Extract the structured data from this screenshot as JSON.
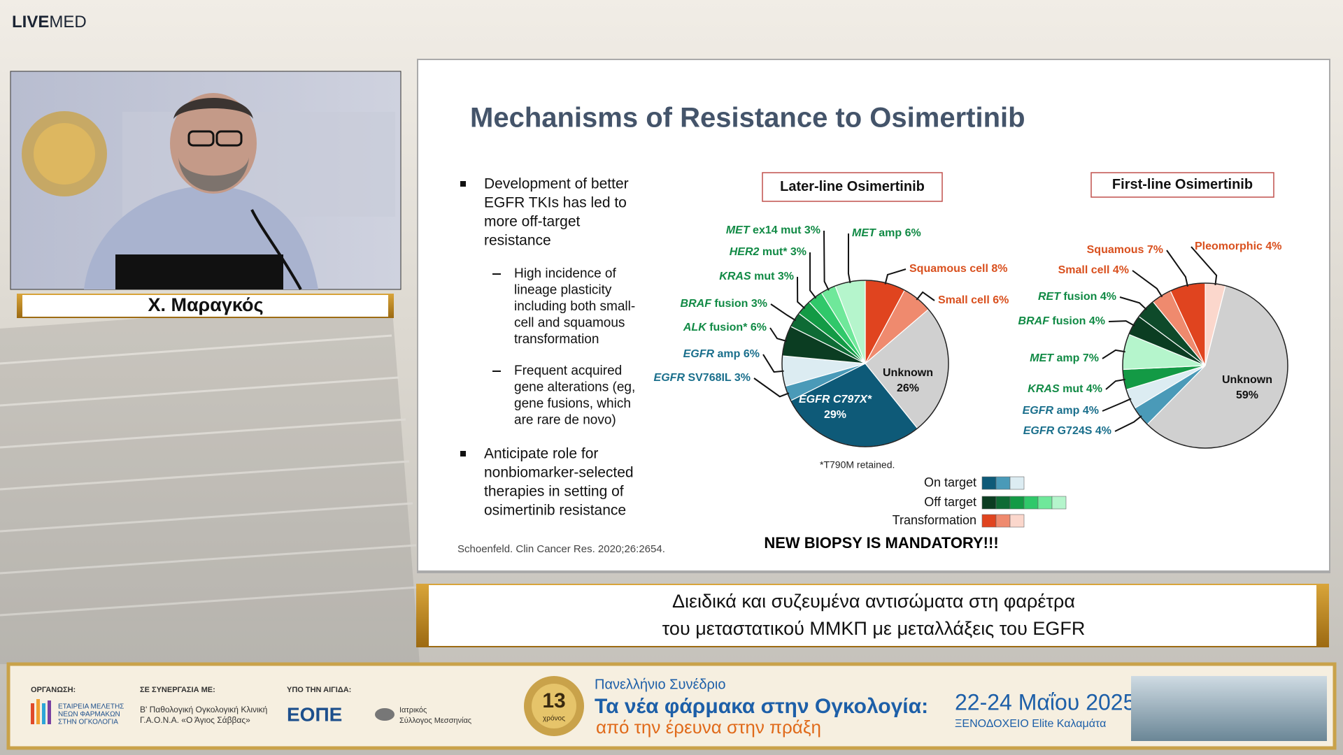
{
  "header": {
    "logo_bold": "LIVE",
    "logo_light": "MED"
  },
  "speaker": {
    "name": "Χ. Μαραγκός"
  },
  "slide": {
    "title": "Mechanisms of Resistance to Osimertinib",
    "bullets": [
      [
        "Development of better",
        "EGFR TKIs has led to",
        "more off-target",
        "resistance"
      ],
      [
        "Anticipate role for",
        "nonbiomarker-selected",
        "therapies in setting of",
        "osimertinib resistance"
      ]
    ],
    "subbullets": [
      [
        "High incidence of",
        "lineage plasticity",
        "including both small-",
        "cell and squamous",
        "transformation"
      ],
      [
        "Frequent acquired",
        "gene alterations (eg,",
        "gene fusions, which",
        "are rare de novo)"
      ]
    ],
    "citation": "Schoenfeld. Clin Cancer Res. 2020;26:2654.",
    "footnote": "*T790M retained.",
    "legend": [
      {
        "name": "On target",
        "colors": [
          "#0e5a78",
          "#4a9ab8",
          "#dcecf2"
        ]
      },
      {
        "name": "Off target",
        "colors": [
          "#0b3d22",
          "#0e6b35",
          "#139a45",
          "#30c86a",
          "#6fe89a",
          "#b5f5cc"
        ]
      },
      {
        "name": "Transformation",
        "colors": [
          "#e0441f",
          "#ef8a6e",
          "#fbd7cc"
        ]
      }
    ],
    "call_to_action": "NEW BIOPSY IS MANDATORY!!!"
  },
  "caption": {
    "lines": [
      "Διειδικά και συζευμένα αντισώματα στη φαρέτρα",
      "του μεταστατικού ΜΜΚΠ με μεταλλάξεις του EGFR"
    ]
  },
  "footer": {
    "organizer_label": "ΟΡΓΑΝΩΣΗ:",
    "organizer": [
      "ΕΤΑΙΡΕΙΑ ΜΕΛΕΤΗΣ",
      "ΝΕΩΝ ΦΑΡΜΑΚΩΝ",
      "ΣΤΗΝ ΟΓΚΟΛΟΓΙΑ"
    ],
    "partner_label": "ΣΕ ΣΥΝΕΡΓΑΣΙΑ ΜΕ:",
    "partner": [
      "Β' Παθολογική Ογκολογική Κλινική",
      "Γ.Α.Ο.Ν.Α. «Ο Άγιος Σάββας»"
    ],
    "auspices_label": "ΥΠΟ ΤΗΝ ΑΙΓΙΔΑ:",
    "auspices_logo": "ΕΟΠΕ",
    "auspices_other": [
      "Ιατρικός",
      "Σύλλογος Μεσσηνίας"
    ],
    "badge_number": "13",
    "badge_text": "χρόνος",
    "event": [
      "Πανελλήνιο Συνέδριο",
      "Τα νέα φάρμακα στην Ογκολογία:",
      "από την έρευνα στην πράξη"
    ],
    "dates": "22-24 Μαΐου 2025",
    "venue": "ΞΕΝΟΔΟΧΕΙΟ Elite Καλαμάτα"
  },
  "chart_data": [
    {
      "type": "pie",
      "title": "Later-line Osimertinib",
      "categories": [
        "Squamous cell",
        "Small cell",
        "Unknown",
        "EGFR C797X*",
        "EGFR SV768IL",
        "EGFR amp",
        "ALK fusion*",
        "BRAF fusion",
        "KRAS mut",
        "HER2 mut*",
        "MET ex14 mut",
        "MET amp"
      ],
      "values": [
        8,
        6,
        26,
        29,
        3,
        6,
        6,
        3,
        3,
        3,
        3,
        6
      ],
      "value_labels": [
        "8%",
        "6%",
        "26%",
        "29%",
        "3%",
        "6%",
        "6%",
        "3%",
        "3%",
        "3%",
        "3%",
        "6%"
      ],
      "colors": [
        "#e0441f",
        "#ef8a6e",
        "#d0d0d0",
        "#0e5a78",
        "#4a9ab8",
        "#dcecf2",
        "#0b3d22",
        "#0e6b35",
        "#139a45",
        "#30c86a",
        "#6fe89a",
        "#b5f5cc"
      ],
      "label_colors": [
        "#d9501e",
        "#d9501e",
        "#111111",
        "#ffffff",
        "#1a6f8c",
        "#1a6f8c",
        "#118a45",
        "#118a45",
        "#118a45",
        "#118a45",
        "#118a45",
        "#118a45"
      ]
    },
    {
      "type": "pie",
      "title": "First-line Osimertinib",
      "categories": [
        "Pleomorphic",
        "Unknown",
        "EGFR G724S",
        "EGFR amp",
        "KRAS mut",
        "MET amp",
        "BRAF fusion",
        "RET fusion",
        "Small cell",
        "Squamous"
      ],
      "values": [
        4,
        59,
        4,
        4,
        4,
        7,
        4,
        4,
        4,
        7
      ],
      "value_labels": [
        "4%",
        "59%",
        "4%",
        "4%",
        "4%",
        "7%",
        "4%",
        "4%",
        "4%",
        "7%"
      ],
      "colors": [
        "#fbd7cc",
        "#d0d0d0",
        "#4a9ab8",
        "#dcecf2",
        "#139a45",
        "#b5f5cc",
        "#0b3d22",
        "#0e4a2a",
        "#ef8a6e",
        "#e0441f"
      ],
      "label_colors": [
        "#d9501e",
        "#111111",
        "#1a6f8c",
        "#1a6f8c",
        "#118a45",
        "#118a45",
        "#118a45",
        "#118a45",
        "#d9501e",
        "#d9501e"
      ]
    }
  ]
}
